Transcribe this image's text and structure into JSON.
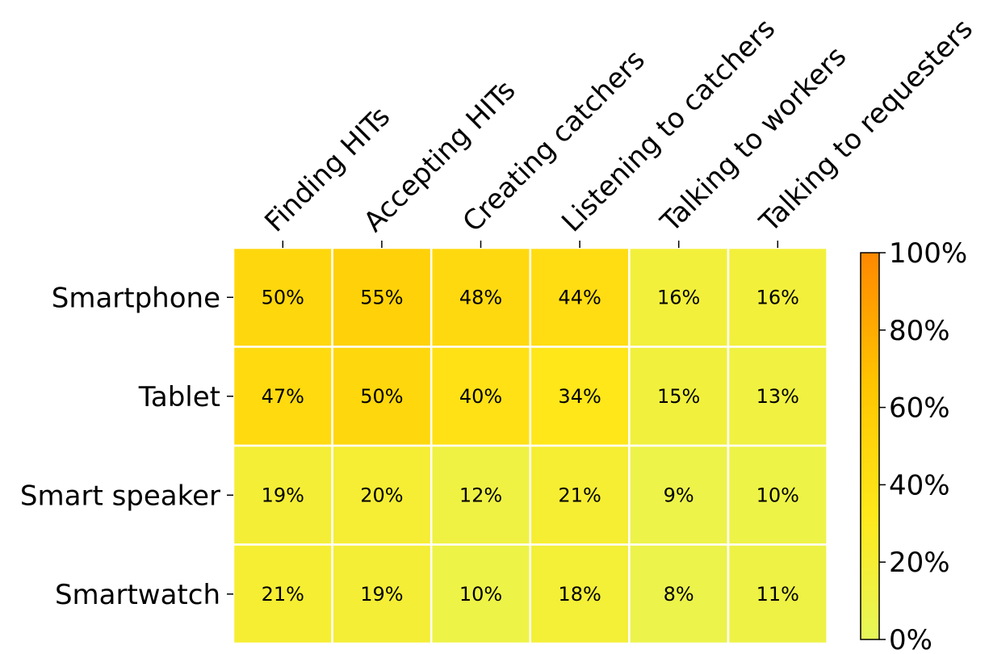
{
  "chart_data": {
    "type": "heatmap",
    "title": "",
    "xlabel": "",
    "ylabel": "",
    "columns": [
      "Finding HITs",
      "Accepting HITs",
      "Creating catchers",
      "Listening to catchers",
      "Talking to workers",
      "Talking to requesters"
    ],
    "rows": [
      "Smartphone",
      "Tablet",
      "Smart speaker",
      "Smartwatch"
    ],
    "values": [
      [
        50,
        55,
        48,
        44,
        16,
        16
      ],
      [
        47,
        50,
        40,
        34,
        15,
        13
      ],
      [
        19,
        20,
        12,
        21,
        9,
        10
      ],
      [
        21,
        19,
        10,
        18,
        8,
        11
      ]
    ],
    "cell_labels": [
      [
        "50%",
        "55%",
        "48%",
        "44%",
        "16%",
        "16%"
      ],
      [
        "47%",
        "50%",
        "40%",
        "34%",
        "15%",
        "13%"
      ],
      [
        "19%",
        "20%",
        "12%",
        "21%",
        "9%",
        "10%"
      ],
      [
        "21%",
        "19%",
        "10%",
        "18%",
        "8%",
        "11%"
      ]
    ],
    "colorbar": {
      "range": [
        0,
        100
      ],
      "ticks": [
        0,
        20,
        40,
        60,
        80,
        100
      ],
      "tick_labels": [
        "0%",
        "20%",
        "40%",
        "60%",
        "80%",
        "100%"
      ],
      "colors": [
        "#e6f75a",
        "#ffe81a",
        "#ffc500",
        "#ff8800"
      ]
    },
    "legend": "right"
  }
}
